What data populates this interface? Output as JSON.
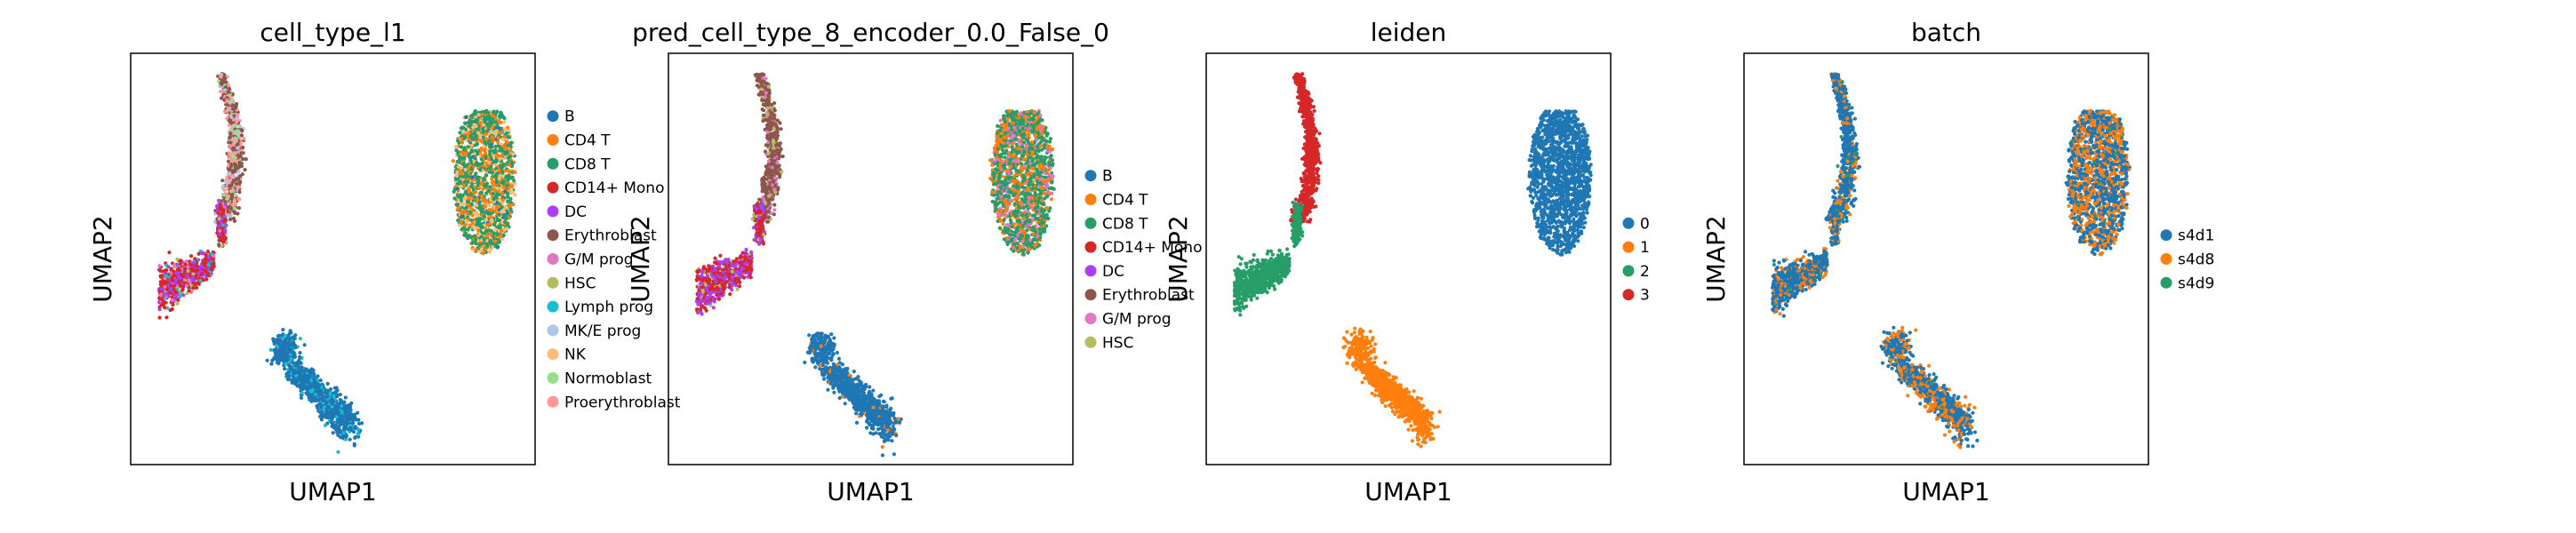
{
  "figure": {
    "axis_tick_note": "",
    "background": "#ffffff"
  },
  "chart_data": [
    {
      "type": "scatter",
      "title": "cell_type_l1",
      "xlabel": "UMAP1",
      "ylabel": "UMAP2",
      "grid": false,
      "ticks": false,
      "legend_placement": "right",
      "legend": [
        {
          "name": "B",
          "color": "#1f77b4"
        },
        {
          "name": "CD4 T",
          "color": "#ff7f0e"
        },
        {
          "name": "CD8 T",
          "color": "#279e68"
        },
        {
          "name": "CD14+ Mono",
          "color": "#d62728"
        },
        {
          "name": "DC",
          "color": "#aa40fc"
        },
        {
          "name": "Erythroblast",
          "color": "#8c564b"
        },
        {
          "name": "G/M prog",
          "color": "#e377c2"
        },
        {
          "name": "HSC",
          "color": "#b5bd61"
        },
        {
          "name": "Lymph prog",
          "color": "#17becf"
        },
        {
          "name": "MK/E prog",
          "color": "#aec7e8"
        },
        {
          "name": "NK",
          "color": "#ffbb78"
        },
        {
          "name": "Normoblast",
          "color": "#98df8a"
        },
        {
          "name": "Proerythroblast",
          "color": "#ff9896"
        }
      ],
      "clusters": [
        {
          "region": "top-left stalk",
          "x": [
            0.18,
            0.26
          ],
          "y": [
            0.58,
            0.98
          ],
          "composition": {
            "Erythroblast": 0.45,
            "Proerythroblast": 0.3,
            "MK/E prog": 0.15,
            "Normoblast": 0.1
          }
        },
        {
          "region": "top-right blob",
          "x": [
            0.78,
            0.95
          ],
          "y": [
            0.55,
            0.88
          ],
          "composition": {
            "CD8 T": 0.5,
            "CD4 T": 0.25,
            "NK": 0.2,
            "B": 0.05
          }
        },
        {
          "region": "middle-left arm",
          "x": [
            0.05,
            0.25
          ],
          "y": [
            0.32,
            0.52
          ],
          "composition": {
            "CD14+ Mono": 0.5,
            "DC": 0.3,
            "G/M prog": 0.1,
            "HSC": 0.05,
            "Lymph prog": 0.05
          }
        },
        {
          "region": "bottom-center tail",
          "x": [
            0.33,
            0.55
          ],
          "y": [
            0.05,
            0.35
          ],
          "composition": {
            "B": 0.85,
            "Lymph prog": 0.15
          }
        }
      ]
    },
    {
      "type": "scatter",
      "title": "pred_cell_type_8_encoder_0.0_False_0",
      "xlabel": "UMAP1",
      "ylabel": "UMAP2",
      "grid": false,
      "ticks": false,
      "legend_placement": "right",
      "legend": [
        {
          "name": "B",
          "color": "#1f77b4"
        },
        {
          "name": "CD4 T",
          "color": "#ff7f0e"
        },
        {
          "name": "CD8 T",
          "color": "#279e68"
        },
        {
          "name": "CD14+ Mono",
          "color": "#d62728"
        },
        {
          "name": "DC",
          "color": "#aa40fc"
        },
        {
          "name": "Erythroblast",
          "color": "#8c564b"
        },
        {
          "name": "G/M prog",
          "color": "#e377c2"
        },
        {
          "name": "HSC",
          "color": "#b5bd61"
        }
      ],
      "clusters": [
        {
          "region": "top-left stalk",
          "x": [
            0.18,
            0.26
          ],
          "y": [
            0.58,
            0.98
          ],
          "composition": {
            "Erythroblast": 0.75,
            "G/M prog": 0.15,
            "HSC": 0.1
          }
        },
        {
          "region": "top-right blob",
          "x": [
            0.78,
            0.95
          ],
          "y": [
            0.55,
            0.88
          ],
          "composition": {
            "CD8 T": 0.55,
            "CD4 T": 0.3,
            "G/M prog": 0.15
          }
        },
        {
          "region": "middle-left arm",
          "x": [
            0.05,
            0.25
          ],
          "y": [
            0.32,
            0.52
          ],
          "composition": {
            "CD14+ Mono": 0.55,
            "DC": 0.35,
            "HSC": 0.1
          }
        },
        {
          "region": "bottom-center tail",
          "x": [
            0.33,
            0.55
          ],
          "y": [
            0.05,
            0.35
          ],
          "composition": {
            "B": 0.92,
            "CD4 T": 0.08
          }
        }
      ]
    },
    {
      "type": "scatter",
      "title": "leiden",
      "xlabel": "UMAP1",
      "ylabel": "UMAP2",
      "grid": false,
      "ticks": false,
      "legend_placement": "right",
      "legend": [
        {
          "name": "0",
          "color": "#1f77b4"
        },
        {
          "name": "1",
          "color": "#ff7f0e"
        },
        {
          "name": "2",
          "color": "#279e68"
        },
        {
          "name": "3",
          "color": "#d62728"
        }
      ],
      "clusters": [
        {
          "region": "top-left stalk",
          "x": [
            0.18,
            0.26
          ],
          "y": [
            0.58,
            0.98
          ],
          "composition": {
            "3": 1.0
          }
        },
        {
          "region": "top-right blob",
          "x": [
            0.78,
            0.95
          ],
          "y": [
            0.55,
            0.88
          ],
          "composition": {
            "0": 1.0
          }
        },
        {
          "region": "middle-left arm",
          "x": [
            0.05,
            0.25
          ],
          "y": [
            0.32,
            0.52
          ],
          "composition": {
            "2": 1.0
          }
        },
        {
          "region": "bottom-center tail",
          "x": [
            0.33,
            0.55
          ],
          "y": [
            0.05,
            0.35
          ],
          "composition": {
            "1": 1.0
          }
        }
      ]
    },
    {
      "type": "scatter",
      "title": "batch",
      "xlabel": "UMAP1",
      "ylabel": "UMAP2",
      "grid": false,
      "ticks": false,
      "legend_placement": "right",
      "legend": [
        {
          "name": "s4d1",
          "color": "#1f77b4"
        },
        {
          "name": "s4d8",
          "color": "#ff7f0e"
        },
        {
          "name": "s4d9",
          "color": "#279e68"
        }
      ],
      "clusters": [
        {
          "region": "top-left stalk",
          "x": [
            0.18,
            0.26
          ],
          "y": [
            0.58,
            0.98
          ],
          "composition": {
            "s4d1": 0.8,
            "s4d8": 0.15,
            "s4d9": 0.05
          }
        },
        {
          "region": "top-right blob",
          "x": [
            0.78,
            0.95
          ],
          "y": [
            0.55,
            0.88
          ],
          "composition": {
            "s4d1": 0.55,
            "s4d8": 0.43,
            "s4d9": 0.02
          }
        },
        {
          "region": "middle-left arm",
          "x": [
            0.05,
            0.25
          ],
          "y": [
            0.32,
            0.52
          ],
          "composition": {
            "s4d1": 0.7,
            "s4d8": 0.28,
            "s4d9": 0.02
          }
        },
        {
          "region": "bottom-center tail",
          "x": [
            0.33,
            0.55
          ],
          "y": [
            0.05,
            0.35
          ],
          "composition": {
            "s4d1": 0.62,
            "s4d8": 0.36,
            "s4d9": 0.02
          }
        }
      ]
    }
  ]
}
